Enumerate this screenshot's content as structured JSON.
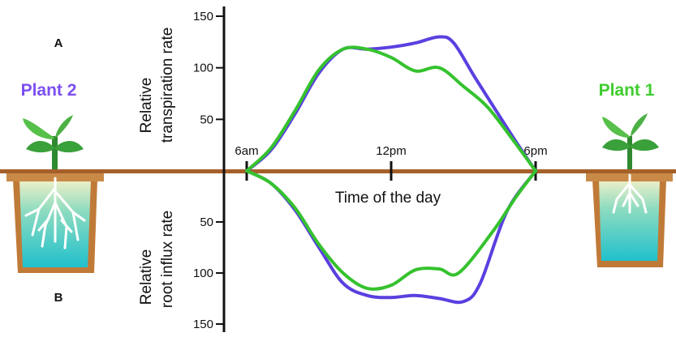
{
  "chart_data": {
    "type": "line",
    "panels": {
      "top": {
        "letter": "A",
        "ylabel_line1": "Relative",
        "ylabel_line2": "transpiration rate",
        "yticks": [
          50,
          100,
          150
        ],
        "ylim": [
          0,
          150
        ]
      },
      "bottom": {
        "letter": "B",
        "ylabel_line1": "Relative",
        "ylabel_line2": "root influx rate",
        "yticks": [
          50,
          100,
          150
        ],
        "ylim": [
          0,
          150
        ]
      }
    },
    "xlabel": "Time of the day",
    "xticks": [
      {
        "label": "6am",
        "hour": 6
      },
      {
        "label": "12pm",
        "hour": 12
      },
      {
        "label": "6pm",
        "hour": 18
      }
    ],
    "xlim": [
      6,
      18
    ],
    "series": [
      {
        "name": "Plant 2",
        "color": "#5b3fe0",
        "transpiration": [
          [
            6,
            0
          ],
          [
            7,
            20
          ],
          [
            8,
            55
          ],
          [
            9,
            95
          ],
          [
            10,
            118
          ],
          [
            11,
            118
          ],
          [
            12,
            120
          ],
          [
            13,
            124
          ],
          [
            14,
            130
          ],
          [
            14.6,
            124
          ],
          [
            15.5,
            90
          ],
          [
            17,
            35
          ],
          [
            18,
            0
          ]
        ],
        "root_influx": [
          [
            6,
            0
          ],
          [
            7,
            12
          ],
          [
            8,
            38
          ],
          [
            9,
            75
          ],
          [
            10,
            110
          ],
          [
            11,
            122
          ],
          [
            12,
            124
          ],
          [
            13,
            122
          ],
          [
            14,
            125
          ],
          [
            15,
            128
          ],
          [
            15.7,
            110
          ],
          [
            16.8,
            40
          ],
          [
            18,
            0
          ]
        ]
      },
      {
        "name": "Plant 1",
        "color": "#35c22e",
        "transpiration": [
          [
            6,
            0
          ],
          [
            7,
            22
          ],
          [
            8,
            58
          ],
          [
            9,
            98
          ],
          [
            10,
            118
          ],
          [
            11,
            118
          ],
          [
            12,
            110
          ],
          [
            13,
            97
          ],
          [
            14,
            100
          ],
          [
            15,
            82
          ],
          [
            16,
            62
          ],
          [
            17,
            32
          ],
          [
            18,
            0
          ]
        ],
        "root_influx": [
          [
            6,
            0
          ],
          [
            7,
            12
          ],
          [
            8,
            36
          ],
          [
            9,
            72
          ],
          [
            10,
            100
          ],
          [
            11,
            115
          ],
          [
            12,
            112
          ],
          [
            13,
            97
          ],
          [
            14,
            96
          ],
          [
            14.8,
            100
          ],
          [
            16.2,
            60
          ],
          [
            17.2,
            25
          ],
          [
            18,
            0
          ]
        ]
      }
    ]
  },
  "plants": {
    "left": {
      "label": "Plant 2",
      "color": "#7b4ff0",
      "icons": [
        "plant-icon",
        "pot-icon",
        "roots-icon"
      ]
    },
    "right": {
      "label": "Plant 1",
      "color": "#3fcc2e",
      "icons": [
        "plant-icon",
        "pot-icon",
        "roots-icon"
      ]
    }
  },
  "colors": {
    "ground": "#a5602a",
    "axis": "#111111",
    "pot": "#c07a38",
    "water_top": "#e8ecc6",
    "water_bottom": "#24c2cc",
    "leaf": "#3aa03a"
  }
}
